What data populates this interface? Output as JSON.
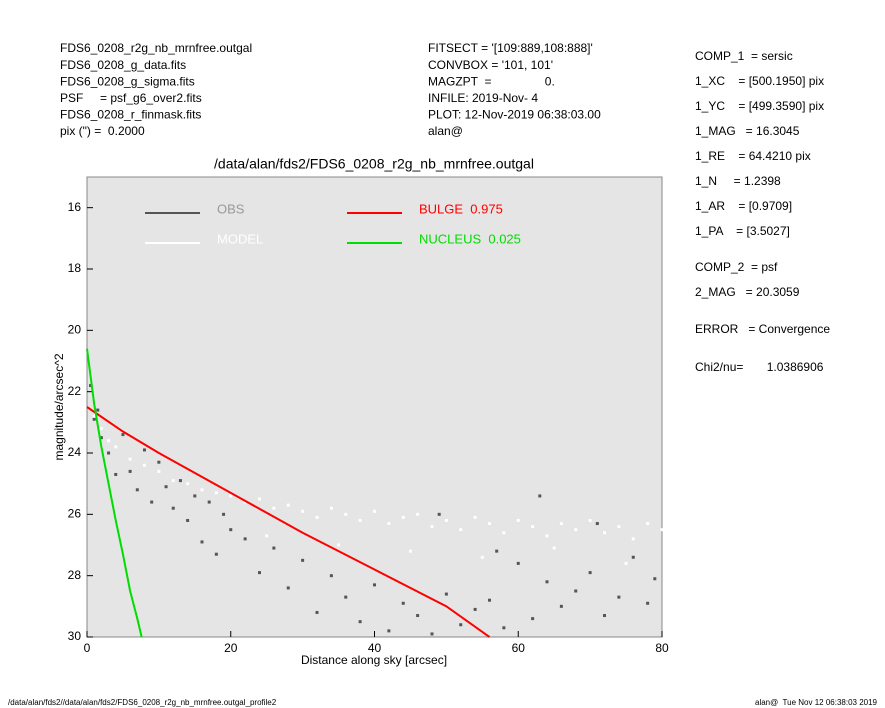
{
  "header": {
    "left": [
      "FDS6_0208_r2g_nb_mrnfree.outgal",
      "FDS6_0208_g_data.fits",
      "FDS6_0208_g_sigma.fits",
      "PSF     = psf_g6_over2.fits",
      "FDS6_0208_r_finmask.fits",
      "pix (\") =  0.2000"
    ],
    "middle": [
      "FITSECT = '[109:889,108:888]'",
      "CONVBOX = '101, 101'",
      "MAGZPT  =                0.",
      "INFILE: 2019-Nov- 4",
      "PLOT: 12-Nov-2019 06:38:03.00",
      "alan@"
    ],
    "right": [
      "COMP_1  = sersic",
      "1_XC    = [500.1950] pix",
      "1_YC    = [499.3590] pix",
      "1_MAG   = 16.3045",
      "1_RE    = 64.4210 pix",
      "1_N     = 1.2398",
      "1_AR    = [0.9709]",
      "1_PA    = [3.5027]",
      "COMP_2  = psf",
      "2_MAG   = 20.3059",
      "ERROR   = Convergence",
      "Chi2/nu=       1.0386906"
    ]
  },
  "footer": {
    "left": "/data/alan/fds2//data/alan/fds2/FDS6_0208_r2g_nb_mrnfree.outgal_profile2",
    "right": "alan@  Tue Nov 12 06:38:03 2019"
  },
  "chart_data": {
    "type": "scatter",
    "title": "/data/alan/fds2/FDS6_0208_r2g_nb_mrnfree.outgal",
    "x_label": "Distance along sky [arcsec]",
    "y_label": "magnitude/arcsec^2",
    "xlim": [
      0,
      80
    ],
    "xticks": [
      0,
      20,
      40,
      60,
      80
    ],
    "ylim": [
      30,
      15
    ],
    "yticks": [
      16,
      18,
      20,
      22,
      24,
      26,
      28,
      30
    ],
    "series": [
      {
        "name": "OBS",
        "color": "#555555",
        "mode": "markers",
        "x": [
          0.5,
          1,
          1.5,
          2,
          3,
          4,
          5,
          6,
          7,
          8,
          9,
          10,
          11,
          12,
          13,
          14,
          15,
          16,
          17,
          18,
          19,
          20,
          22,
          24,
          26,
          28,
          30,
          32,
          34,
          36,
          38,
          40,
          42,
          44,
          46,
          48,
          50,
          52,
          54,
          56,
          58,
          60,
          62,
          64,
          66,
          68,
          70,
          72,
          74,
          76,
          78,
          79,
          63,
          71,
          57,
          49
        ],
        "values": [
          21.8,
          22.9,
          22.6,
          23.5,
          24.0,
          24.7,
          23.4,
          24.6,
          25.2,
          23.9,
          25.6,
          24.3,
          25.1,
          25.8,
          24.9,
          26.2,
          25.4,
          26.9,
          25.6,
          27.3,
          26.0,
          26.5,
          26.8,
          27.9,
          27.1,
          28.4,
          27.5,
          29.2,
          28.0,
          28.7,
          29.5,
          28.3,
          29.8,
          28.9,
          29.3,
          29.9,
          28.6,
          29.6,
          29.1,
          28.8,
          29.7,
          27.6,
          29.4,
          28.2,
          29.0,
          28.5,
          27.9,
          29.3,
          28.7,
          27.4,
          28.9,
          28.1,
          25.4,
          26.3,
          27.2,
          26.0
        ]
      },
      {
        "name": "MODEL",
        "color": "#ffffff",
        "mode": "markers",
        "x": [
          1,
          2,
          3,
          4,
          6,
          8,
          10,
          12,
          14,
          16,
          18,
          20,
          22,
          24,
          26,
          28,
          30,
          32,
          34,
          36,
          38,
          40,
          42,
          44,
          46,
          48,
          50,
          52,
          54,
          56,
          58,
          60,
          62,
          64,
          66,
          68,
          70,
          72,
          74,
          76,
          78,
          80,
          25,
          35,
          45,
          55,
          65,
          75
        ],
        "values": [
          22.8,
          23.2,
          23.6,
          23.8,
          24.2,
          24.4,
          24.6,
          24.9,
          25.0,
          25.2,
          25.3,
          25.4,
          25.6,
          25.5,
          25.8,
          25.7,
          25.9,
          26.1,
          25.8,
          26.0,
          26.2,
          25.9,
          26.3,
          26.1,
          26.0,
          26.4,
          26.2,
          26.5,
          26.1,
          26.3,
          26.6,
          26.2,
          26.4,
          26.7,
          26.3,
          26.5,
          26.2,
          26.6,
          26.4,
          26.8,
          26.3,
          26.5,
          26.7,
          27.0,
          27.2,
          27.4,
          27.1,
          27.6
        ]
      },
      {
        "name": "BULGE  0.975",
        "color": "#ff0000",
        "mode": "lines",
        "x": [
          0,
          5,
          10,
          20,
          30,
          40,
          50,
          56
        ],
        "values": [
          22.5,
          23.3,
          24.0,
          25.3,
          26.6,
          27.8,
          29.0,
          30
        ]
      },
      {
        "name": "NUCLEUS  0.025",
        "color": "#00dd00",
        "mode": "lines",
        "x": [
          0,
          0.5,
          1,
          2,
          3,
          4,
          5,
          6,
          7,
          7.6
        ],
        "values": [
          20.6,
          21.5,
          22.4,
          23.8,
          25.0,
          26.2,
          27.3,
          28.5,
          29.4,
          30
        ]
      }
    ]
  }
}
